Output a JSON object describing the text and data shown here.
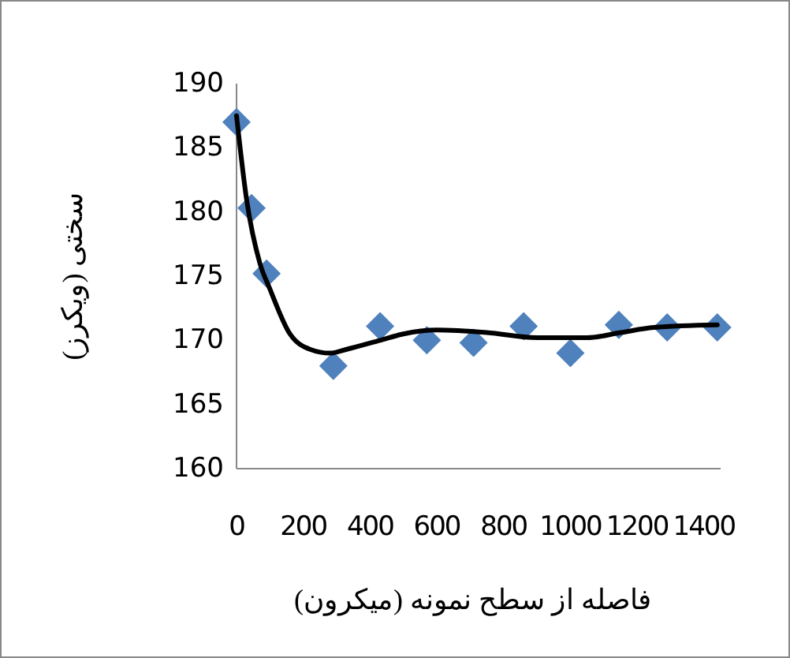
{
  "chart_data": {
    "type": "scatter",
    "xlabel": "فاصله از سطح نمونه (میکرون)",
    "ylabel": "سختی  (ویکرز)",
    "xlim": [
      0,
      1450
    ],
    "xticks": [
      0,
      200,
      400,
      600,
      800,
      1000,
      1200,
      1400
    ],
    "ylim": [
      160,
      190
    ],
    "yticks": [
      160,
      165,
      170,
      175,
      180,
      185,
      190
    ],
    "grid": false,
    "marker": "diamond",
    "series": [
      {
        "color": "#4f81bd",
        "x": [
          0,
          45,
          90,
          290,
          430,
          570,
          710,
          860,
          1000,
          1145,
          1290,
          1440
        ],
        "values": [
          187,
          180.3,
          175.2,
          168,
          171.1,
          170,
          169.8,
          171.1,
          169,
          171.2,
          171,
          171
        ]
      },
      {
        "type": "line",
        "color": "#000000",
        "marker": "none",
        "line_style": "solid",
        "x": [
          0,
          30,
          70,
          100,
          160,
          220,
          280,
          330,
          430,
          500,
          600,
          750,
          900,
          1050,
          1150,
          1250,
          1440
        ],
        "values": [
          187.5,
          181,
          176,
          174,
          170.5,
          169.3,
          169,
          169.3,
          170,
          170.5,
          170.8,
          170.6,
          170.2,
          170.2,
          170.6,
          171,
          171.2
        ]
      }
    ]
  }
}
